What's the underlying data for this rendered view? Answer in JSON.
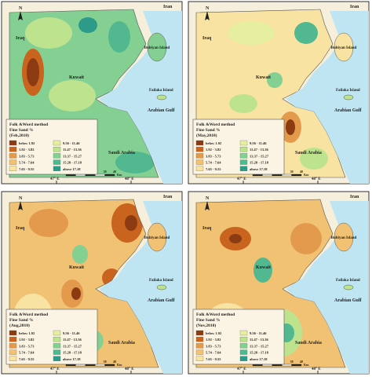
{
  "panels": [
    {
      "legend_title": "Folk &Word method",
      "legend_subtitle": "Fine Sand %",
      "period": "(Feb,2010)"
    },
    {
      "legend_title": "Folk &Word method",
      "legend_subtitle": "Fine Sand %",
      "period": "(May,2010)"
    },
    {
      "legend_title": "Folk &Word method",
      "legend_subtitle": "Fine Sand %",
      "period": "(Aug,2010)"
    },
    {
      "legend_title": "Folk &Word method",
      "legend_subtitle": "Fine Sand %",
      "period": "(Nov,2010)"
    }
  ],
  "labels": {
    "iran": "Iran",
    "iraq": "Iraq",
    "bubiyan": "Bubiyan Island",
    "kuwait": "Kuwait",
    "failaka": "Failaka Island",
    "gulf": "Arabian Gulf",
    "saudi": "Saudi Arabia",
    "north": "N",
    "lon1": "47° E",
    "lon2": "48° E",
    "km": "Km"
  },
  "scale": [
    "0",
    "5",
    "10",
    "20",
    "30",
    "40"
  ],
  "legend": [
    {
      "label": "below 1.92",
      "color": "#8b3a12"
    },
    {
      "label": "1.92 - 3.82",
      "color": "#c8641e"
    },
    {
      "label": "3.83 - 5.73",
      "color": "#e39a4c"
    },
    {
      "label": "5.74 - 7.64",
      "color": "#f2c274"
    },
    {
      "label": "7.65 - 9.55",
      "color": "#f8e3a2"
    },
    {
      "label": "9.56 - 11.46",
      "color": "#e6efa0"
    },
    {
      "label": "11.47 - 13.36",
      "color": "#bde38f"
    },
    {
      "label": "13.37 - 15.27",
      "color": "#84d092"
    },
    {
      "label": "15.28 - 17.18",
      "color": "#52b890"
    },
    {
      "label": "above 17.18",
      "color": "#2e9a8a"
    }
  ]
}
